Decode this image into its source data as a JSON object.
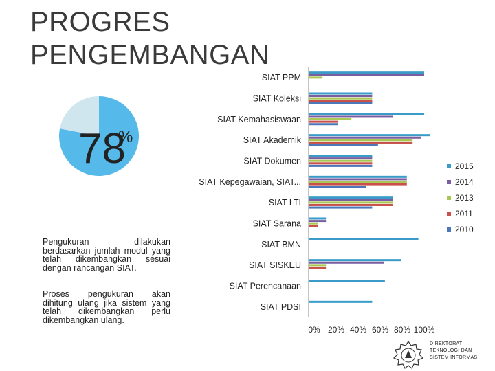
{
  "slide": {
    "title_line1": "PROGRES",
    "title_line2": "PENGEMBANGAN",
    "percent_value": "78",
    "percent_symbol": "%",
    "note1": "Pengukuran dilakukan berdasarkan jumlah modul yang telah dikembangkan sesuai dengan rancangan SIAT.",
    "note2": "Proses pengukuran akan dihitung ulang jika sistem yang telah dikembangkan perlu dikembangkan ulang.",
    "logo_text_line1": "DIREKTORAT",
    "logo_text_line2": "TEKNOLOGI DAN",
    "logo_text_line3": "SISTEM INFORMASI"
  },
  "pie_data": {
    "type": "pie",
    "values": [
      78,
      22
    ],
    "colors": [
      "#55b9ea",
      "#cfe6ee"
    ]
  },
  "chart_data": {
    "type": "bar",
    "orientation": "horizontal",
    "categories": [
      "SIAT PPM",
      "SIAT Koleksi",
      "SIAT Kemahasiswaan",
      "SIAT Akademik",
      "SIAT Dokumen",
      "SIAT Kepegawaian, SIAT...",
      "SIAT LTI",
      "SIAT Sarana",
      "SIAT BMN",
      "SIAT SISKEU",
      "SIAT Perencanaan",
      "SIAT PDSI"
    ],
    "series": [
      {
        "name": "2015",
        "color": "#3b9bc8",
        "values": [
          100,
          55,
          100,
          105,
          55,
          85,
          73,
          15,
          95,
          80,
          66,
          55
        ]
      },
      {
        "name": "2014",
        "color": "#7b5ea0",
        "values": [
          100,
          55,
          73,
          97,
          55,
          85,
          73,
          15,
          0,
          65,
          0,
          0
        ]
      },
      {
        "name": "2013",
        "color": "#a8c853",
        "values": [
          12,
          55,
          37,
          90,
          55,
          85,
          73,
          8,
          0,
          15,
          0,
          0
        ]
      },
      {
        "name": "2011",
        "color": "#c9504b",
        "values": [
          0,
          55,
          25,
          90,
          55,
          85,
          73,
          8,
          0,
          15,
          0,
          0
        ]
      },
      {
        "name": "2010",
        "color": "#4a78b8",
        "values": [
          0,
          55,
          25,
          60,
          55,
          50,
          55,
          0,
          0,
          0,
          0,
          0
        ]
      }
    ],
    "xlim": [
      0,
      100
    ],
    "xticks": [
      "0%",
      "20%",
      "40%",
      "60%",
      "80%",
      "100%"
    ],
    "legend_position": "right",
    "legend_order": [
      "2015",
      "2014",
      "2013",
      "2011",
      "2010"
    ],
    "grid": false
  }
}
